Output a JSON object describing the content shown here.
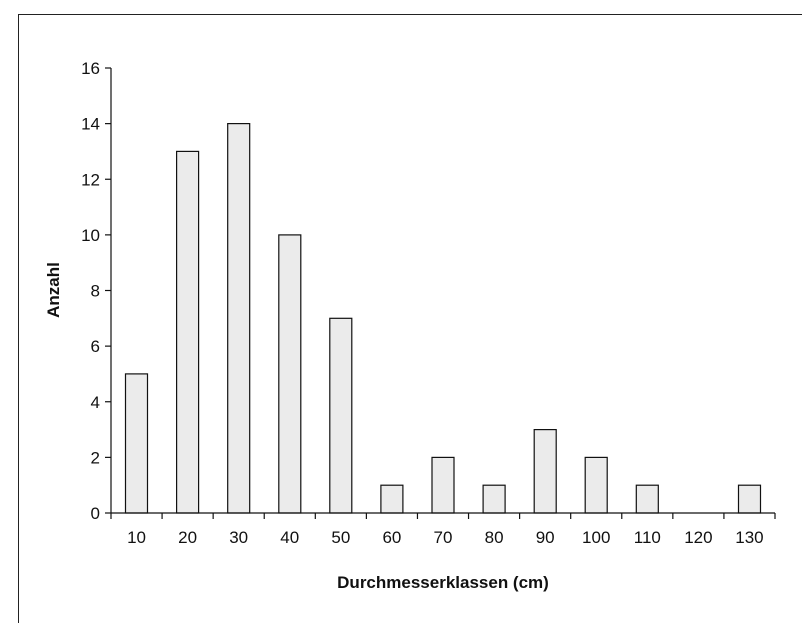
{
  "chart_data": {
    "type": "bar",
    "categories": [
      "10",
      "20",
      "30",
      "40",
      "50",
      "60",
      "70",
      "80",
      "90",
      "100",
      "110",
      "120",
      "130"
    ],
    "values": [
      5,
      13,
      14,
      10,
      7,
      1,
      2,
      1,
      3,
      2,
      1,
      0,
      1
    ],
    "title": "",
    "xlabel": "Durchmesserklassen (cm)",
    "ylabel": "Anzahl",
    "ylim": [
      0,
      16
    ],
    "yticks": [
      "0",
      "2",
      "4",
      "6",
      "8",
      "10",
      "12",
      "14",
      "16"
    ],
    "grid": false,
    "bar_color": "#ebebeb",
    "bar_edge_color": "#111111"
  }
}
